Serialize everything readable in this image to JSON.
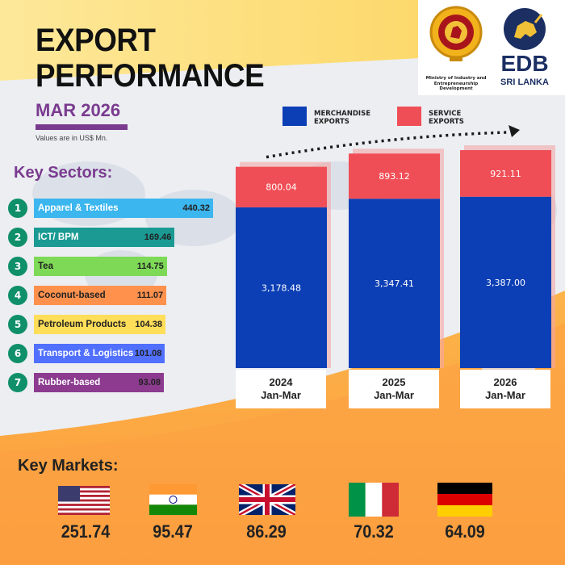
{
  "header": {
    "title_line1": "EXPORT",
    "title_line2": "PERFORMANCE",
    "period": "MAR 2026",
    "units_note": "Values are in US$ Mn."
  },
  "ministry": {
    "text": "Ministry of Industry and Entrepreneurship Development"
  },
  "edb": {
    "name": "EDB",
    "country": "SRI LANKA"
  },
  "legend": {
    "merchandise": "MERCHANDISE EXPORTS",
    "service": "SERVICE EXPORTS"
  },
  "key_sectors": {
    "title": "Key Sectors:",
    "items": [
      {
        "rank": "1",
        "label": "Apparel & Textiles",
        "value": "440.32",
        "color": "#3bb6ef"
      },
      {
        "rank": "2",
        "label": "ICT/ BPM",
        "value": "169.46",
        "color": "#1a9a93"
      },
      {
        "rank": "3",
        "label": "Tea",
        "value": "114.75",
        "color": "#7ed957"
      },
      {
        "rank": "4",
        "label": "Coconut-based",
        "value": "111.07",
        "color": "#ff914d"
      },
      {
        "rank": "5",
        "label": "Petroleum Products",
        "value": "104.38",
        "color": "#ffde59"
      },
      {
        "rank": "6",
        "label": "Transport & Logistics",
        "value": "101.08",
        "color": "#5170ff"
      },
      {
        "rank": "7",
        "label": "Rubber-based",
        "value": "93.08",
        "color": "#8c3b8f"
      }
    ]
  },
  "chart_data": {
    "type": "bar",
    "stacked": true,
    "categories": [
      "2024 Jan-Mar",
      "2025 Jan-Mar",
      "2026 Jan-Mar"
    ],
    "category_lines": [
      [
        "2024",
        "Jan-Mar"
      ],
      [
        "2025",
        "Jan-Mar"
      ],
      [
        "2026",
        "Jan-Mar"
      ]
    ],
    "series": [
      {
        "name": "MERCHANDISE EXPORTS",
        "values": [
          3178.48,
          3347.41,
          3387.0
        ],
        "labels": [
          "3,178.48",
          "3,347.41",
          "3,387.00"
        ],
        "color": "#0c3fb5"
      },
      {
        "name": "SERVICE EXPORTS",
        "values": [
          800.04,
          893.12,
          921.11
        ],
        "labels": [
          "800.04",
          "893.12",
          "921.11"
        ],
        "color": "#f04e56"
      }
    ],
    "units": "US$ Mn.",
    "trend_arrow": true
  },
  "key_markets": {
    "title": "Key Markets:",
    "items": [
      {
        "country": "USA",
        "value": "251.74",
        "flag": "usa-flag"
      },
      {
        "country": "India",
        "value": "95.47",
        "flag": "india-flag"
      },
      {
        "country": "United Kingdom",
        "value": "86.29",
        "flag": "uk-flag"
      },
      {
        "country": "Italy",
        "value": "70.32",
        "flag": "italy-flag"
      },
      {
        "country": "Germany",
        "value": "64.09",
        "flag": "germany-flag"
      }
    ]
  }
}
